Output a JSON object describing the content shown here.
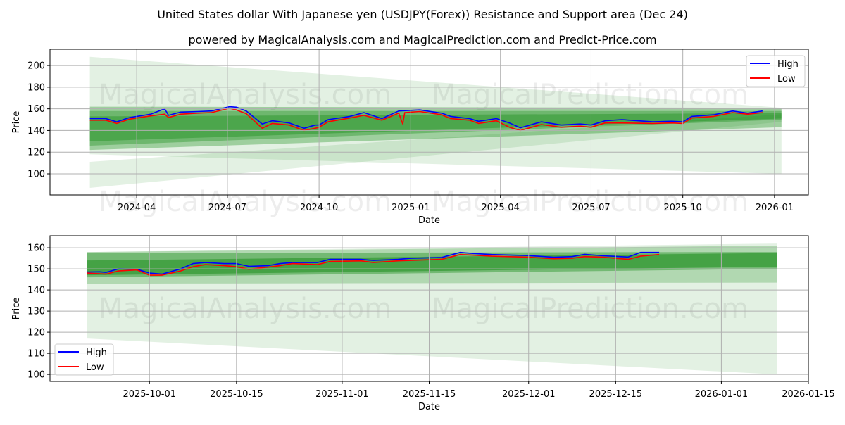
{
  "title": "United States dollar With Japanese yen (USDJPY(Forex)) Resistance and Support area (Dec 24)",
  "subtitle": "powered by MagicalAnalysis.com and MagicalPrediction.com and Predict-Price.com",
  "watermarks": [
    "MagicalAnalysis.com",
    "MagicalPrediction.com"
  ],
  "colors": {
    "high": "#0000ff",
    "low": "#ff0000",
    "band": "#008000",
    "grid": "#b0b0b0"
  },
  "chart_data": [
    {
      "type": "line",
      "xlabel": "Date",
      "ylabel": "Price",
      "ylim": [
        80.5,
        215
      ],
      "xlim": [
        "2024-01-05",
        "2026-02-04"
      ],
      "yticks": [
        100,
        120,
        140,
        160,
        180,
        200
      ],
      "xticks": [
        "2024-04",
        "2024-07",
        "2024-10",
        "2025-01",
        "2025-04",
        "2025-07",
        "2025-10",
        "2026-01"
      ],
      "xtick_dates": [
        "2024-04-01",
        "2024-07-01",
        "2024-10-01",
        "2025-01-01",
        "2025-04-01",
        "2025-07-01",
        "2025-10-01",
        "2026-01-01"
      ],
      "grid": true,
      "legend": {
        "placement": "top-right",
        "entries": [
          "High",
          "Low"
        ]
      },
      "band_range": [
        "2024-02-14",
        "2026-01-08"
      ],
      "bands": [
        {
          "start": [
            208,
            118
          ],
          "end": [
            161,
            100
          ],
          "alpha": 0.11
        },
        {
          "start": [
            111,
            87
          ],
          "end": [
            155,
            148
          ],
          "alpha": 0.11
        },
        {
          "start": [
            162,
            122
          ],
          "end": [
            161,
            143
          ],
          "alpha": 0.3
        },
        {
          "start": [
            158,
            126
          ],
          "end": [
            158,
            150
          ],
          "alpha": 0.3
        },
        {
          "start": [
            153,
            130
          ],
          "end": [
            156,
            151
          ],
          "alpha": 0.3
        }
      ],
      "series": [
        {
          "name": "High",
          "points": [
            [
              "2024-02-14",
              151
            ],
            [
              "2024-03-01",
              151
            ],
            [
              "2024-03-12",
              148
            ],
            [
              "2024-03-25",
              152
            ],
            [
              "2024-04-15",
              155
            ],
            [
              "2024-04-29",
              160
            ],
            [
              "2024-05-03",
              154
            ],
            [
              "2024-05-15",
              157
            ],
            [
              "2024-06-01",
              157.5
            ],
            [
              "2024-06-15",
              158
            ],
            [
              "2024-07-03",
              162
            ],
            [
              "2024-07-10",
              161.5
            ],
            [
              "2024-07-20",
              158
            ],
            [
              "2024-08-05",
              146
            ],
            [
              "2024-08-15",
              149
            ],
            [
              "2024-09-01",
              147
            ],
            [
              "2024-09-16",
              142
            ],
            [
              "2024-09-27",
              145
            ],
            [
              "2024-10-01",
              145
            ],
            [
              "2024-10-10",
              150
            ],
            [
              "2024-11-01",
              153
            ],
            [
              "2024-11-15",
              156.5
            ],
            [
              "2024-12-03",
              151
            ],
            [
              "2024-12-20",
              158
            ],
            [
              "2025-01-10",
              159
            ],
            [
              "2025-02-01",
              156
            ],
            [
              "2025-02-10",
              153
            ],
            [
              "2025-03-01",
              151
            ],
            [
              "2025-03-10",
              148.5
            ],
            [
              "2025-03-28",
              151
            ],
            [
              "2025-04-10",
              147
            ],
            [
              "2025-04-21",
              142.5
            ],
            [
              "2025-05-12",
              148
            ],
            [
              "2025-06-01",
              145
            ],
            [
              "2025-06-20",
              146
            ],
            [
              "2025-07-01",
              145
            ],
            [
              "2025-07-15",
              149
            ],
            [
              "2025-08-01",
              150
            ],
            [
              "2025-09-01",
              148
            ],
            [
              "2025-09-20",
              148.5
            ],
            [
              "2025-10-01",
              148
            ],
            [
              "2025-10-10",
              153
            ],
            [
              "2025-11-01",
              154.5
            ],
            [
              "2025-11-20",
              158
            ],
            [
              "2025-12-05",
              156
            ],
            [
              "2025-12-20",
              158
            ]
          ]
        },
        {
          "name": "Low",
          "points": [
            [
              "2024-02-14",
              149.5
            ],
            [
              "2024-03-01",
              149.5
            ],
            [
              "2024-03-12",
              146.5
            ],
            [
              "2024-03-25",
              150.5
            ],
            [
              "2024-04-15",
              153.5
            ],
            [
              "2024-04-29",
              155
            ],
            [
              "2024-05-03",
              152
            ],
            [
              "2024-05-15",
              155
            ],
            [
              "2024-06-01",
              156
            ],
            [
              "2024-06-15",
              156.5
            ],
            [
              "2024-07-03",
              160.5
            ],
            [
              "2024-07-10",
              159
            ],
            [
              "2024-07-20",
              155.5
            ],
            [
              "2024-08-05",
              142
            ],
            [
              "2024-08-15",
              146.5
            ],
            [
              "2024-09-01",
              145
            ],
            [
              "2024-09-16",
              140
            ],
            [
              "2024-09-27",
              142
            ],
            [
              "2024-10-01",
              143
            ],
            [
              "2024-10-10",
              148
            ],
            [
              "2024-11-01",
              151.5
            ],
            [
              "2024-11-15",
              154
            ],
            [
              "2024-12-03",
              149.5
            ],
            [
              "2024-12-20",
              156
            ],
            [
              "2024-12-24",
              146
            ],
            [
              "2024-12-26",
              156.5
            ],
            [
              "2025-01-10",
              157.5
            ],
            [
              "2025-02-01",
              154.5
            ],
            [
              "2025-02-10",
              151
            ],
            [
              "2025-03-01",
              149.5
            ],
            [
              "2025-03-10",
              146.5
            ],
            [
              "2025-03-28",
              149
            ],
            [
              "2025-04-10",
              143
            ],
            [
              "2025-04-21",
              140
            ],
            [
              "2025-05-12",
              145.5
            ],
            [
              "2025-06-01",
              143
            ],
            [
              "2025-06-20",
              144
            ],
            [
              "2025-07-01",
              143
            ],
            [
              "2025-07-15",
              147
            ],
            [
              "2025-08-01",
              147
            ],
            [
              "2025-09-01",
              146.5
            ],
            [
              "2025-09-20",
              147
            ],
            [
              "2025-10-01",
              146.5
            ],
            [
              "2025-10-10",
              151.5
            ],
            [
              "2025-11-01",
              153
            ],
            [
              "2025-11-20",
              156.5
            ],
            [
              "2025-12-05",
              155
            ],
            [
              "2025-12-20",
              156.5
            ]
          ]
        }
      ]
    },
    {
      "type": "line",
      "xlabel": "Date",
      "ylabel": "Price",
      "ylim": [
        96.7,
        165.7
      ],
      "xlim": [
        "2025-09-15",
        "2026-01-15"
      ],
      "yticks": [
        100,
        110,
        120,
        130,
        140,
        150,
        160
      ],
      "xticks": [
        "2025-10-01",
        "2025-10-15",
        "2025-11-01",
        "2025-11-15",
        "2025-12-01",
        "2025-12-15",
        "2026-01-01",
        "2026-01-15"
      ],
      "xtick_dates": [
        "2025-10-01",
        "2025-10-15",
        "2025-11-01",
        "2025-11-15",
        "2025-12-01",
        "2025-12-15",
        "2026-01-01",
        "2026-01-15"
      ],
      "grid": true,
      "legend": {
        "placement": "bottom-left",
        "entries": [
          "High",
          "Low"
        ]
      },
      "band_range": [
        "2025-09-21",
        "2026-01-10"
      ],
      "bands": [
        {
          "start": [
            158,
            117
          ],
          "end": [
            162,
            100
          ],
          "alpha": 0.11
        },
        {
          "start": [
            158,
            143
          ],
          "end": [
            161,
            143.5
          ],
          "alpha": 0.22
        },
        {
          "start": [
            157.5,
            146
          ],
          "end": [
            158,
            150
          ],
          "alpha": 0.35
        },
        {
          "start": [
            154,
            147
          ],
          "end": [
            157.5,
            151
          ],
          "alpha": 0.4
        }
      ],
      "series": [
        {
          "name": "High",
          "points": [
            [
              "2025-09-21",
              148.5
            ],
            [
              "2025-09-23",
              148.6
            ],
            [
              "2025-09-24",
              148.3
            ],
            [
              "2025-09-26",
              150
            ],
            [
              "2025-09-29",
              149.8
            ],
            [
              "2025-10-01",
              148
            ],
            [
              "2025-10-03",
              147.5
            ],
            [
              "2025-10-06",
              150
            ],
            [
              "2025-10-08",
              152.5
            ],
            [
              "2025-10-10",
              153
            ],
            [
              "2025-10-13",
              152.5
            ],
            [
              "2025-10-15",
              152.5
            ],
            [
              "2025-10-17",
              151.2
            ],
            [
              "2025-10-20",
              151.5
            ],
            [
              "2025-10-22",
              152.5
            ],
            [
              "2025-10-24",
              153
            ],
            [
              "2025-10-28",
              153
            ],
            [
              "2025-10-30",
              154.5
            ],
            [
              "2025-11-04",
              154.5
            ],
            [
              "2025-11-06",
              154
            ],
            [
              "2025-11-10",
              154.5
            ],
            [
              "2025-11-12",
              155
            ],
            [
              "2025-11-17",
              155.4
            ],
            [
              "2025-11-20",
              157.8
            ],
            [
              "2025-11-22",
              157.3
            ],
            [
              "2025-11-25",
              156.8
            ],
            [
              "2025-12-01",
              156.3
            ],
            [
              "2025-12-05",
              155.5
            ],
            [
              "2025-12-08",
              155.8
            ],
            [
              "2025-12-10",
              156.9
            ],
            [
              "2025-12-13",
              156.2
            ],
            [
              "2025-12-17",
              155.6
            ],
            [
              "2025-12-19",
              157.8
            ],
            [
              "2025-12-22",
              157.8
            ]
          ]
        },
        {
          "name": "Low",
          "points": [
            [
              "2025-09-21",
              148
            ],
            [
              "2025-09-24",
              147.5
            ],
            [
              "2025-09-26",
              149
            ],
            [
              "2025-09-29",
              149.5
            ],
            [
              "2025-10-01",
              147
            ],
            [
              "2025-10-03",
              147
            ],
            [
              "2025-10-06",
              149
            ],
            [
              "2025-10-08",
              151
            ],
            [
              "2025-10-10",
              152
            ],
            [
              "2025-10-13",
              151.5
            ],
            [
              "2025-10-15",
              151
            ],
            [
              "2025-10-17",
              149.8
            ],
            [
              "2025-10-20",
              150.8
            ],
            [
              "2025-10-22",
              151.5
            ],
            [
              "2025-10-24",
              152.5
            ],
            [
              "2025-10-28",
              152
            ],
            [
              "2025-10-30",
              153.5
            ],
            [
              "2025-11-04",
              153.8
            ],
            [
              "2025-11-06",
              153
            ],
            [
              "2025-11-10",
              153.8
            ],
            [
              "2025-11-12",
              154
            ],
            [
              "2025-11-17",
              154.5
            ],
            [
              "2025-11-20",
              156.8
            ],
            [
              "2025-11-22",
              156.5
            ],
            [
              "2025-11-25",
              156
            ],
            [
              "2025-12-01",
              155.5
            ],
            [
              "2025-12-05",
              154.8
            ],
            [
              "2025-12-08",
              155
            ],
            [
              "2025-12-10",
              155.8
            ],
            [
              "2025-12-13",
              155.5
            ],
            [
              "2025-12-17",
              154.5
            ],
            [
              "2025-12-19",
              156
            ],
            [
              "2025-12-22",
              156.8
            ]
          ]
        }
      ]
    }
  ]
}
